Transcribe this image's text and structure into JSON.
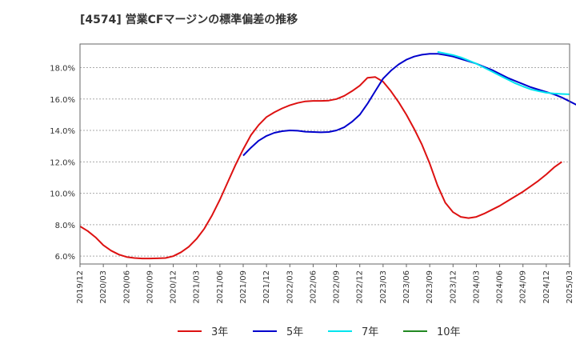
{
  "chart_data": {
    "type": "line",
    "title": "[4574]  営業CFマージンの標準偏差の推移",
    "xlabel": "",
    "ylabel": "",
    "ylim": [
      5.5,
      19.5
    ],
    "y_ticks": [
      "6.0%",
      "8.0%",
      "10.0%",
      "12.0%",
      "14.0%",
      "16.0%",
      "18.0%"
    ],
    "y_tick_values": [
      6,
      8,
      10,
      12,
      14,
      16,
      18
    ],
    "x_ticks": [
      "2019/12",
      "2020/03",
      "2020/06",
      "2020/09",
      "2020/12",
      "2021/03",
      "2021/06",
      "2021/09",
      "2021/12",
      "2022/03",
      "2022/06",
      "2022/09",
      "2022/12",
      "2023/03",
      "2023/06",
      "2023/09",
      "2023/12",
      "2024/03",
      "2024/06",
      "2024/09",
      "2024/12",
      "2025/03"
    ],
    "grid": true,
    "legend_position": "bottom",
    "series": [
      {
        "name": "3年",
        "color": "#dd1111",
        "start_index": 0,
        "values": [
          7.9,
          7.6,
          7.2,
          6.7,
          6.35,
          6.1,
          5.95,
          5.88,
          5.85,
          5.85,
          5.86,
          5.88,
          6.0,
          6.25,
          6.6,
          7.1,
          7.75,
          8.6,
          9.6,
          10.7,
          11.8,
          12.8,
          13.7,
          14.35,
          14.85,
          15.15,
          15.4,
          15.6,
          15.75,
          15.85,
          15.88,
          15.88,
          15.9,
          16.0,
          16.2,
          16.5,
          16.85,
          17.35,
          17.4,
          17.1,
          16.5,
          15.8,
          15.0,
          14.1,
          13.1,
          11.9,
          10.5,
          9.4,
          8.8,
          8.5,
          8.42,
          8.5,
          8.7,
          8.95,
          9.2,
          9.5,
          9.8,
          10.1,
          10.45,
          10.8,
          11.2,
          11.65,
          12.0
        ]
      },
      {
        "name": "5年",
        "color": "#0000cc",
        "start_index": 21,
        "values": [
          12.4,
          12.9,
          13.35,
          13.65,
          13.85,
          13.95,
          14.0,
          13.98,
          13.92,
          13.9,
          13.88,
          13.9,
          14.0,
          14.2,
          14.55,
          15.0,
          15.7,
          16.5,
          17.3,
          17.8,
          18.2,
          18.5,
          18.7,
          18.82,
          18.88,
          18.88,
          18.8,
          18.7,
          18.55,
          18.4,
          18.25,
          18.05,
          17.85,
          17.6,
          17.35,
          17.15,
          16.95,
          16.75,
          16.6,
          16.45,
          16.3,
          16.1,
          15.85,
          15.6
        ]
      },
      {
        "name": "7年",
        "color": "#00e5ee",
        "start_index": 46,
        "values": [
          19.0,
          18.9,
          18.8,
          18.65,
          18.45,
          18.25,
          18.0,
          17.75,
          17.5,
          17.25,
          17.0,
          16.8,
          16.62,
          16.5,
          16.4,
          16.35,
          16.32,
          16.3
        ]
      },
      {
        "name": "10年",
        "color": "#228822",
        "start_index": 0,
        "values": []
      }
    ]
  }
}
